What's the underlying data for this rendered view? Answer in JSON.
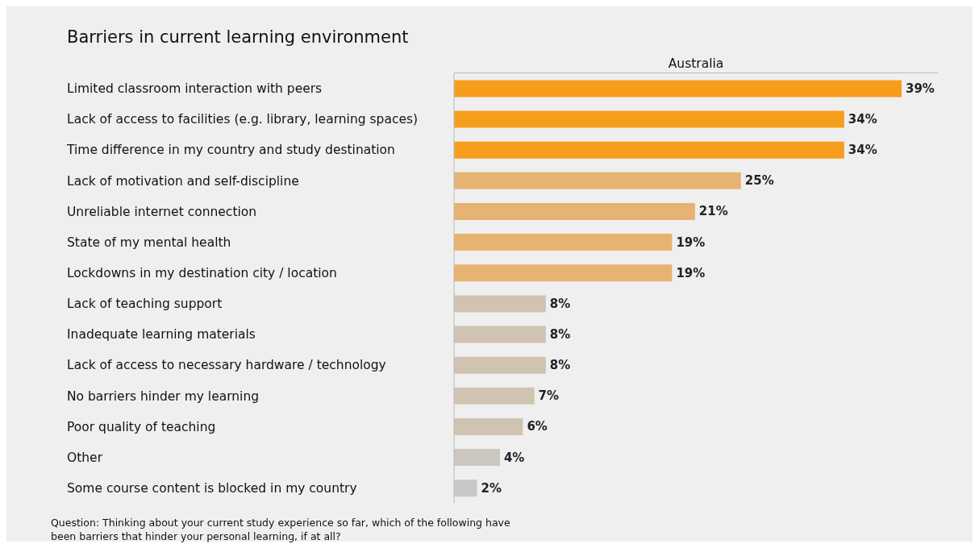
{
  "chart_data": {
    "type": "bar",
    "orientation": "horizontal",
    "title": "Barriers in current learning environment",
    "categories": [
      "Limited classroom interaction with peers",
      "Lack of access to facilities (e.g. library, learning spaces)",
      "Time difference in my country and study destination",
      "Lack of motivation and self-discipline",
      "Unreliable internet connection",
      "State of my mental health",
      "Lockdowns in my destination city / location",
      "Lack of teaching support",
      "Inadequate learning materials",
      "Lack of access to necessary hardware / technology",
      "No barriers hinder my learning",
      "Poor quality of teaching",
      "Other",
      "Some course content is blocked in my country"
    ],
    "series": [
      {
        "name": "Australia",
        "values": [
          39,
          34,
          34,
          25,
          21,
          19,
          19,
          8,
          8,
          8,
          7,
          6,
          4,
          2
        ],
        "value_labels": [
          "39%",
          "34%",
          "34%",
          "25%",
          "21%",
          "19%",
          "19%",
          "8%",
          "8%",
          "8%",
          "7%",
          "6%",
          "4%",
          "2%"
        ],
        "colors": [
          "#f79d1e",
          "#f79d1e",
          "#f79d1e",
          "#e6b373",
          "#e6b373",
          "#e6b373",
          "#e6b373",
          "#d0c3b2",
          "#d0c3b2",
          "#d0c3b2",
          "#d0c3b2",
          "#d0c3b2",
          "#cbc6bf",
          "#c8c8c8"
        ]
      }
    ],
    "legend": "top",
    "annotations": [
      "Question: Thinking about your current study experience so far, which of the following have been barriers that hinder your personal learning, if at all?"
    ]
  }
}
